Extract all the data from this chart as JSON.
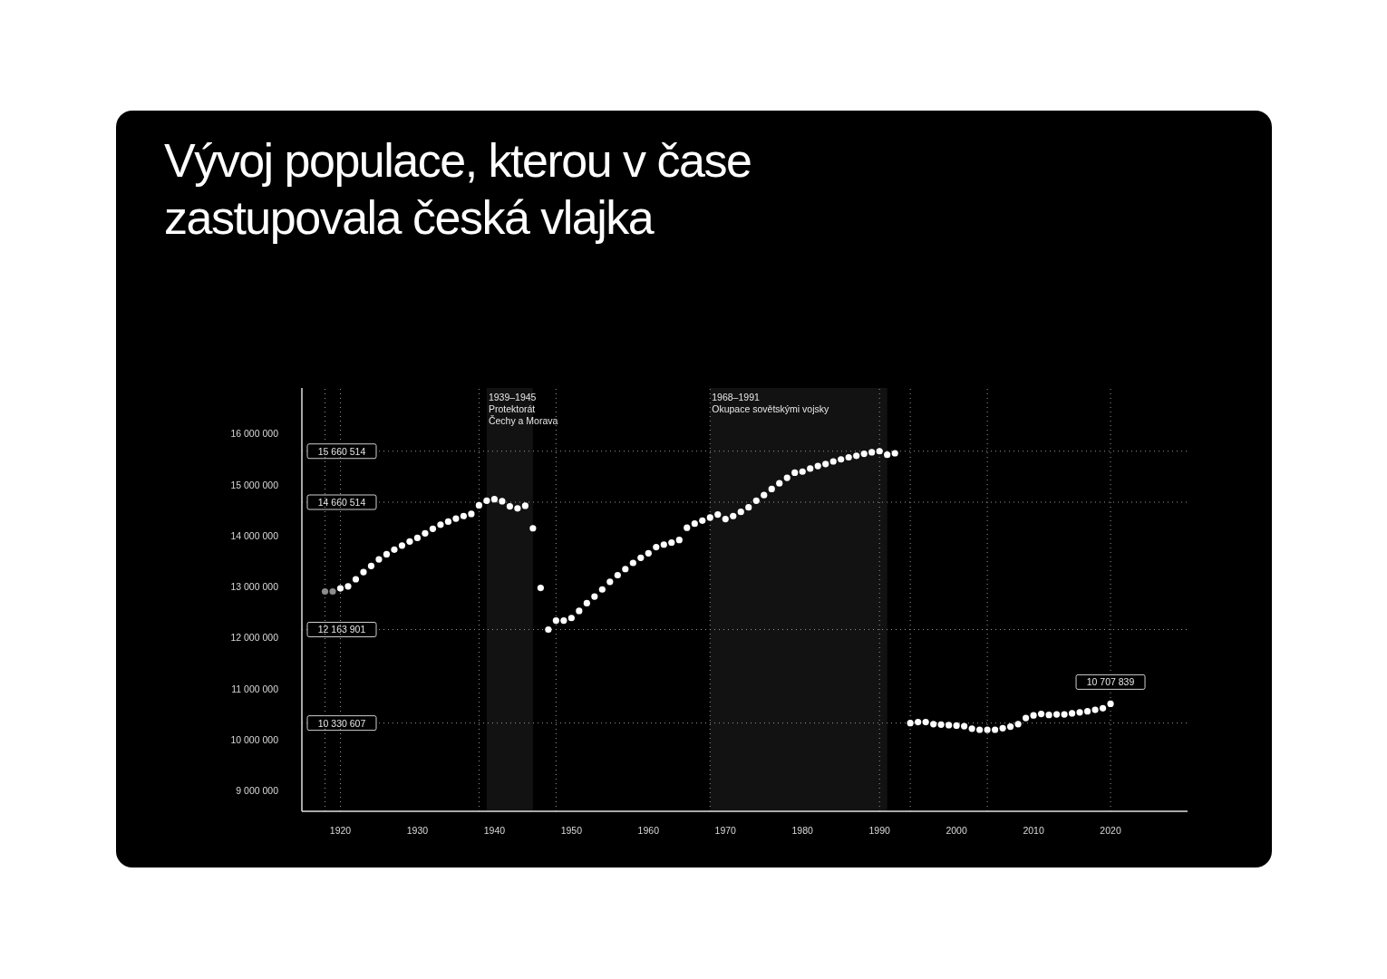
{
  "chart_data": {
    "type": "scatter",
    "title": "Vývoj populace, kterou v čase zastupovala česká vlajka",
    "marker": "circle",
    "grid": false,
    "legend": false,
    "xlim": [
      1915,
      2030
    ],
    "xticks": [
      1920,
      1930,
      1940,
      1950,
      1960,
      1970,
      1980,
      1990,
      2000,
      2010,
      2020
    ],
    "ylim": [
      8600000,
      16900000
    ],
    "yticks": [
      {
        "value": 9000000,
        "label": "9 000 000"
      },
      {
        "value": 10000000,
        "label": "10 000 000"
      },
      {
        "value": 11000000,
        "label": "11 000 000"
      },
      {
        "value": 12000000,
        "label": "12 000 000"
      },
      {
        "value": 13000000,
        "label": "13 000 000"
      },
      {
        "value": 14000000,
        "label": "14 000 000"
      },
      {
        "value": 15000000,
        "label": "15 000 000"
      },
      {
        "value": 16000000,
        "label": "16 000 000"
      }
    ],
    "series": [
      {
        "color": "#8c8c8c",
        "x": [
          1918,
          1919
        ],
        "values": [
          12910000,
          12910000
        ]
      },
      {
        "color": "#ffffff",
        "x": [
          1920,
          1921,
          1922,
          1923,
          1924,
          1925,
          1926,
          1927,
          1928,
          1929,
          1930,
          1931,
          1932,
          1933,
          1934,
          1935,
          1936,
          1937,
          1938,
          1939,
          1940,
          1941,
          1942,
          1943,
          1944,
          1945,
          1946,
          1947,
          1948,
          1949,
          1950,
          1951,
          1952,
          1953,
          1954,
          1955,
          1956,
          1957,
          1958,
          1959,
          1960,
          1961,
          1962,
          1963,
          1964,
          1965,
          1966,
          1967,
          1968,
          1969,
          1970,
          1971,
          1972,
          1973,
          1974,
          1975,
          1976,
          1977,
          1978,
          1979,
          1980,
          1981,
          1982,
          1983,
          1984,
          1985,
          1986,
          1987,
          1988,
          1989,
          1990,
          1991,
          1992,
          1994,
          1995,
          1996,
          1997,
          1998,
          1999,
          2000,
          2001,
          2002,
          2003,
          2004,
          2005,
          2006,
          2007,
          2008,
          2009,
          2010,
          2011,
          2012,
          2013,
          2014,
          2015,
          2016,
          2017,
          2018,
          2019,
          2020
        ],
        "values": [
          12970000,
          13010000,
          13150000,
          13290000,
          13410000,
          13540000,
          13640000,
          13730000,
          13810000,
          13890000,
          13960000,
          14050000,
          14140000,
          14220000,
          14280000,
          14340000,
          14390000,
          14430000,
          14600000,
          14690000,
          14720000,
          14680000,
          14580000,
          14540000,
          14590000,
          14150000,
          12980000,
          12163901,
          12340000,
          12340000,
          12390000,
          12530000,
          12680000,
          12810000,
          12950000,
          13100000,
          13230000,
          13350000,
          13470000,
          13570000,
          13660000,
          13780000,
          13830000,
          13870000,
          13920000,
          14160000,
          14240000,
          14300000,
          14360000,
          14420000,
          14330000,
          14390000,
          14470000,
          14560000,
          14690000,
          14800000,
          14920000,
          15030000,
          15140000,
          15240000,
          15260000,
          15320000,
          15370000,
          15410000,
          15460000,
          15500000,
          15540000,
          15570000,
          15610000,
          15640000,
          15660514,
          15590000,
          15620000,
          10330607,
          10350000,
          10350000,
          10310000,
          10300000,
          10290000,
          10280000,
          10270000,
          10220000,
          10200000,
          10200000,
          10200000,
          10230000,
          10260000,
          10310000,
          10430000,
          10480000,
          10510000,
          10490000,
          10500000,
          10500000,
          10520000,
          10540000,
          10560000,
          10590000,
          10620000,
          10707839
        ]
      }
    ],
    "ref_lines": [
      {
        "axis": "y",
        "value": 15660514,
        "label": "15 660 514",
        "line_style": "dotted"
      },
      {
        "axis": "y",
        "value": 14660514,
        "label": "14 660 514",
        "line_style": "dotted"
      },
      {
        "axis": "y",
        "value": 12163901,
        "label": "12 163 901",
        "line_style": "dotted"
      },
      {
        "axis": "y",
        "value": 10330607,
        "label": "10 330 607",
        "line_style": "dotted"
      },
      {
        "axis": "x",
        "value": 1918,
        "line_style": "dotted"
      },
      {
        "axis": "x",
        "value": 1920,
        "line_style": "dotted"
      },
      {
        "axis": "x",
        "value": 1938,
        "line_style": "dotted"
      },
      {
        "axis": "x",
        "value": 1948,
        "line_style": "dotted"
      },
      {
        "axis": "x",
        "value": 1968,
        "line_style": "dotted"
      },
      {
        "axis": "x",
        "value": 1990,
        "line_style": "dotted"
      },
      {
        "axis": "x",
        "value": 1994,
        "line_style": "dotted"
      },
      {
        "axis": "x",
        "value": 2004,
        "line_style": "dotted"
      },
      {
        "axis": "x",
        "value": 2020,
        "line_style": "dotted"
      }
    ],
    "bands": [
      {
        "axis": "x",
        "from": 1939,
        "to": 1945,
        "label": "1939–1945\nProtektorát\nČechy a Morava"
      },
      {
        "axis": "x",
        "from": 1968,
        "to": 1991,
        "label": "1968–1991\nOkupace sovětskými vojsky"
      }
    ],
    "annotations": [
      {
        "text": "10 707 839",
        "x": 2020,
        "y": 10707839
      }
    ]
  }
}
